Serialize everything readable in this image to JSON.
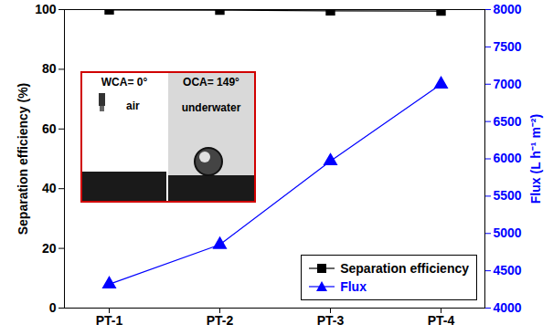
{
  "chart_data": {
    "type": "line",
    "categories": [
      "PT-1",
      "PT-2",
      "PT-3",
      "PT-4"
    ],
    "ylabel": "Separation efficiency (%)",
    "y2label": "Flux (L h⁻¹ m⁻²)",
    "ylim": [
      0,
      100
    ],
    "yticks": [
      0,
      20,
      40,
      60,
      80,
      100
    ],
    "y2lim": [
      4000,
      8000
    ],
    "y2ticks": [
      4000,
      4500,
      5000,
      5500,
      6000,
      6500,
      7000,
      7500,
      8000
    ],
    "series": [
      {
        "name": "Separation efficiency",
        "color": "#000000",
        "marker": "square",
        "values": [
          99.9,
          99.8,
          99.6,
          99.5
        ]
      },
      {
        "name": "Flux",
        "color": "#0000ff",
        "marker": "triangle",
        "axis": "y2",
        "values": [
          4320,
          4850,
          5970,
          7000
        ]
      }
    ],
    "legend": "lower right",
    "annotations": [
      "WCA= 0°",
      "air",
      "OCA= 149°",
      "underwater"
    ]
  }
}
